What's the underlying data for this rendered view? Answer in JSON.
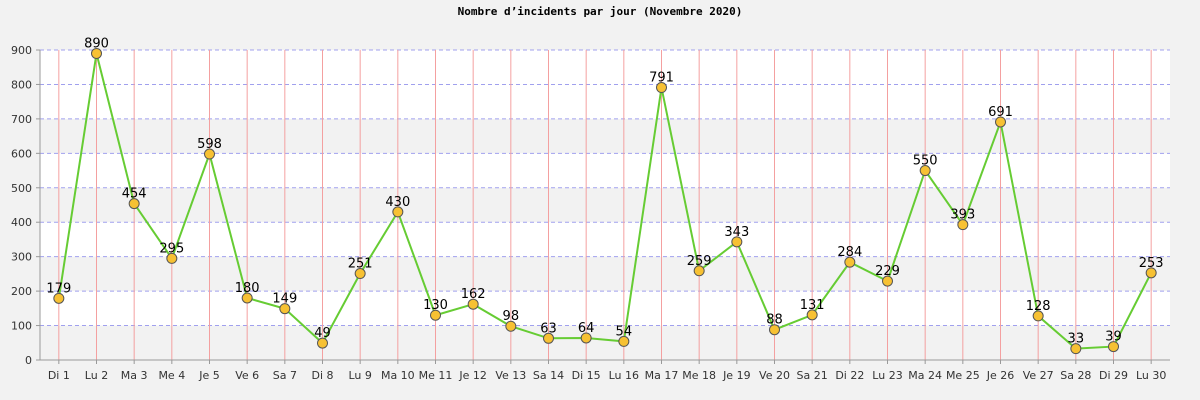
{
  "chart_data": {
    "type": "line",
    "title": "Nombre d’incidents par jour (Novembre 2020)",
    "categories": [
      "Di 1",
      "Lu 2",
      "Ma 3",
      "Me 4",
      "Je 5",
      "Ve 6",
      "Sa 7",
      "Di 8",
      "Lu 9",
      "Ma 10",
      "Me 11",
      "Je 12",
      "Ve 13",
      "Sa 14",
      "Di 15",
      "Lu 16",
      "Ma 17",
      "Me 18",
      "Je 19",
      "Ve 20",
      "Sa 21",
      "Di 22",
      "Lu 23",
      "Ma 24",
      "Me 25",
      "Je 26",
      "Ve 27",
      "Sa 28",
      "Di 29",
      "Lu 30"
    ],
    "values": [
      179,
      890,
      454,
      295,
      598,
      180,
      149,
      49,
      251,
      430,
      130,
      162,
      98,
      63,
      64,
      54,
      791,
      259,
      343,
      88,
      131,
      284,
      229,
      550,
      393,
      691,
      128,
      33,
      39,
      253
    ],
    "xlabel": "",
    "ylabel": "",
    "ylim": [
      0,
      900
    ],
    "yticks": [
      0,
      100,
      200,
      300,
      400,
      500,
      600,
      700,
      800,
      900
    ],
    "grid": true,
    "colors": {
      "line": "#66cc33",
      "marker_fill": "#f7c133",
      "marker_stroke": "#555555",
      "vertical_grid": "#f4a0a0",
      "horizontal_grid": "#a0a0ee",
      "plot_band": "#ffffff"
    }
  }
}
